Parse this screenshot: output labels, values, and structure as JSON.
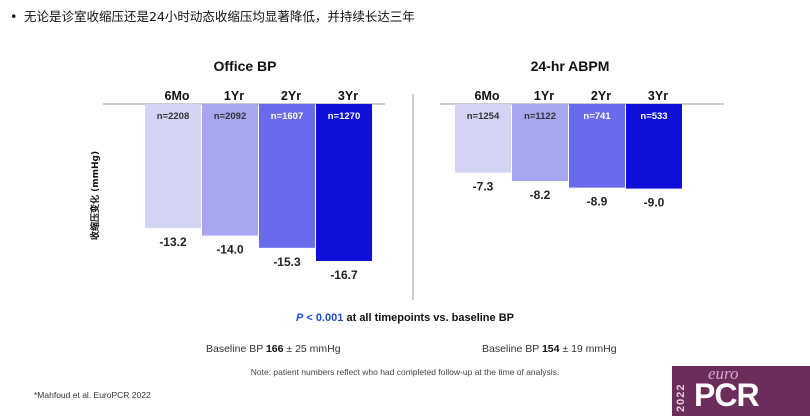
{
  "headline": {
    "bullet": "•",
    "text": "无论是诊室收缩压还是24小时动态收缩压均显著降低，并持续长达三年"
  },
  "colors": {
    "bar_6mo": "#d3d3f6",
    "bar_1yr": "#a6a6f1",
    "bar_2yr": "#6a6aee",
    "bar_3yr": "#0f0fd8",
    "p_value": "#1a4fd1",
    "logo_bg": "#6b2d5a"
  },
  "chart_data": [
    {
      "type": "bar",
      "title": "Office BP",
      "ylabel": "收缩压变化 (mmHg)",
      "categories": [
        "6Mo",
        "1Yr",
        "2Yr",
        "3Yr"
      ],
      "n": [
        "n=2208",
        "n=2092",
        "n=1607",
        "n=1270"
      ],
      "values": [
        -13.2,
        -14.0,
        -15.3,
        -16.7
      ],
      "value_labels": [
        "-13.2",
        "-14.0",
        "-15.3",
        "-16.7"
      ],
      "ylim": [
        -18,
        0
      ]
    },
    {
      "type": "bar",
      "title": "24-hr ABPM",
      "ylabel": "",
      "categories": [
        "6Mo",
        "1Yr",
        "2Yr",
        "3Yr"
      ],
      "n": [
        "n=1254",
        "n=1122",
        "n=741",
        "n=533"
      ],
      "values": [
        -7.3,
        -8.2,
        -8.9,
        -9.0
      ],
      "value_labels": [
        "-7.3",
        "-8.2",
        "-8.9",
        "-9.0"
      ],
      "ylim": [
        -18,
        0
      ]
    }
  ],
  "pvalue": {
    "p": "P",
    "rest": " < 0.001",
    "tail": " at all timepoints vs. baseline BP"
  },
  "baseline_office": {
    "pre": "Baseline BP ",
    "value": "166",
    "post": " ± 25 mmHg"
  },
  "baseline_abpm": {
    "pre": "Baseline BP ",
    "value": "154",
    "post": " ± 19 mmHg"
  },
  "note": "Note: patient numbers reflect who had completed follow-up at the time of analysis.",
  "reference": "*Mahfoud et al. EuroPCR 2022",
  "logo": {
    "year": "2022",
    "euro": "euro",
    "pcr": "PCR"
  }
}
